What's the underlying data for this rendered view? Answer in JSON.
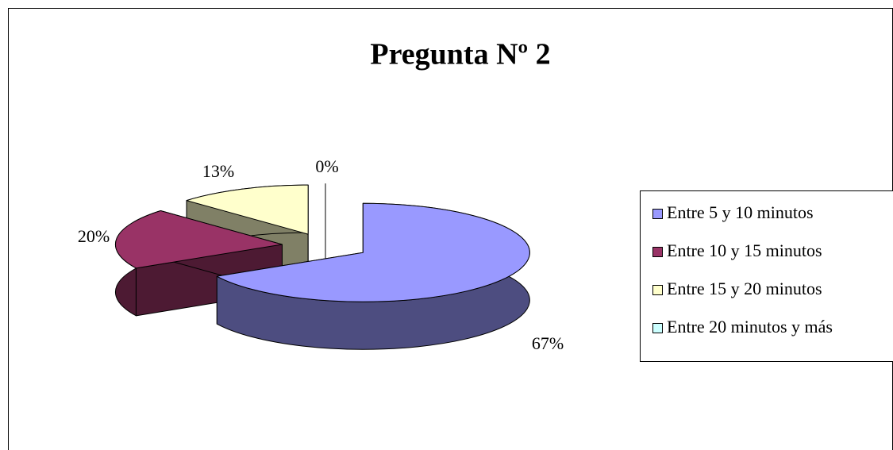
{
  "chart_data": {
    "type": "pie3d",
    "title": "Pregunta Nº 2",
    "categories": [
      "Entre 5 y 10 minutos",
      "Entre 10 y 15 minutos",
      "Entre 15 y 20 minutos",
      "Entre 20 minutos y más"
    ],
    "values": [
      67,
      20,
      13,
      0
    ],
    "value_labels": [
      "67%",
      "20%",
      "13%",
      "0%"
    ],
    "colors": [
      "#9999ff",
      "#993366",
      "#ffffcc",
      "#ccffff"
    ],
    "legend": "right"
  }
}
